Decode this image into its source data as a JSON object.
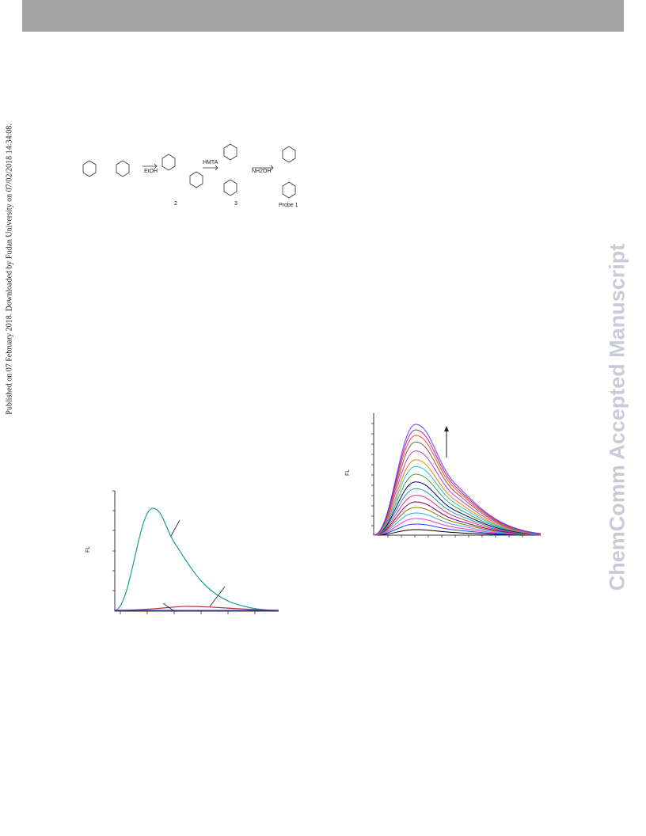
{
  "sidebar": "Published on 07 February 2018. Downloaded by Fudan University on 07/02/2018 14:34:08.",
  "watermark": "ChemComm Accepted Manuscript",
  "scheme": {
    "reagents": [
      "EtOH",
      "HMTA",
      "NH2OH"
    ],
    "compounds": [
      "2",
      "3",
      "Probe 1"
    ]
  },
  "figure_left": {
    "y_label": "FL"
  },
  "figure_right": {
    "y_label": "FL"
  }
}
